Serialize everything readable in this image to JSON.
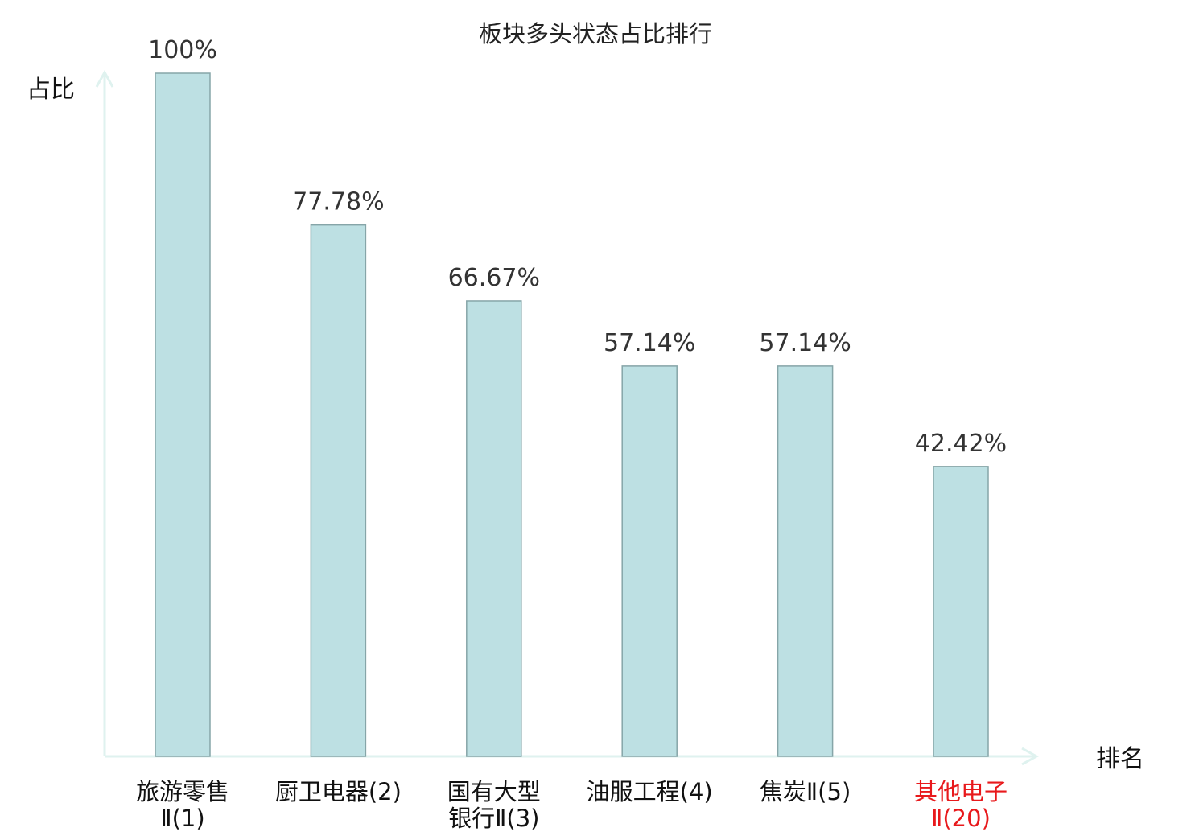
{
  "chart_data": {
    "type": "bar",
    "title": "板块多头状态占比排行",
    "ylabel": "占比",
    "xlabel": "排名",
    "ylim": [
      0,
      100
    ],
    "categories": [
      {
        "lines": [
          "旅游零售",
          "Ⅱ(1)"
        ],
        "highlight": false
      },
      {
        "lines": [
          "厨卫电器(2)"
        ],
        "highlight": false
      },
      {
        "lines": [
          "国有大型",
          "银行Ⅱ(3)"
        ],
        "highlight": false
      },
      {
        "lines": [
          "油服工程(4)"
        ],
        "highlight": false
      },
      {
        "lines": [
          "焦炭Ⅱ(5)"
        ],
        "highlight": false
      },
      {
        "lines": [
          "其他电子",
          "Ⅱ(20)"
        ],
        "highlight": true
      }
    ],
    "values": [
      100,
      77.78,
      66.67,
      57.14,
      57.14,
      42.42
    ],
    "value_labels": [
      "100%",
      "77.78%",
      "66.67%",
      "57.14%",
      "57.14%",
      "42.42%"
    ],
    "colors": {
      "bar_fill": "#bde0e3",
      "bar_stroke": "#86a5a8",
      "axis": "#dff2ef",
      "text": "#333333",
      "highlight": "#e8191c"
    }
  }
}
